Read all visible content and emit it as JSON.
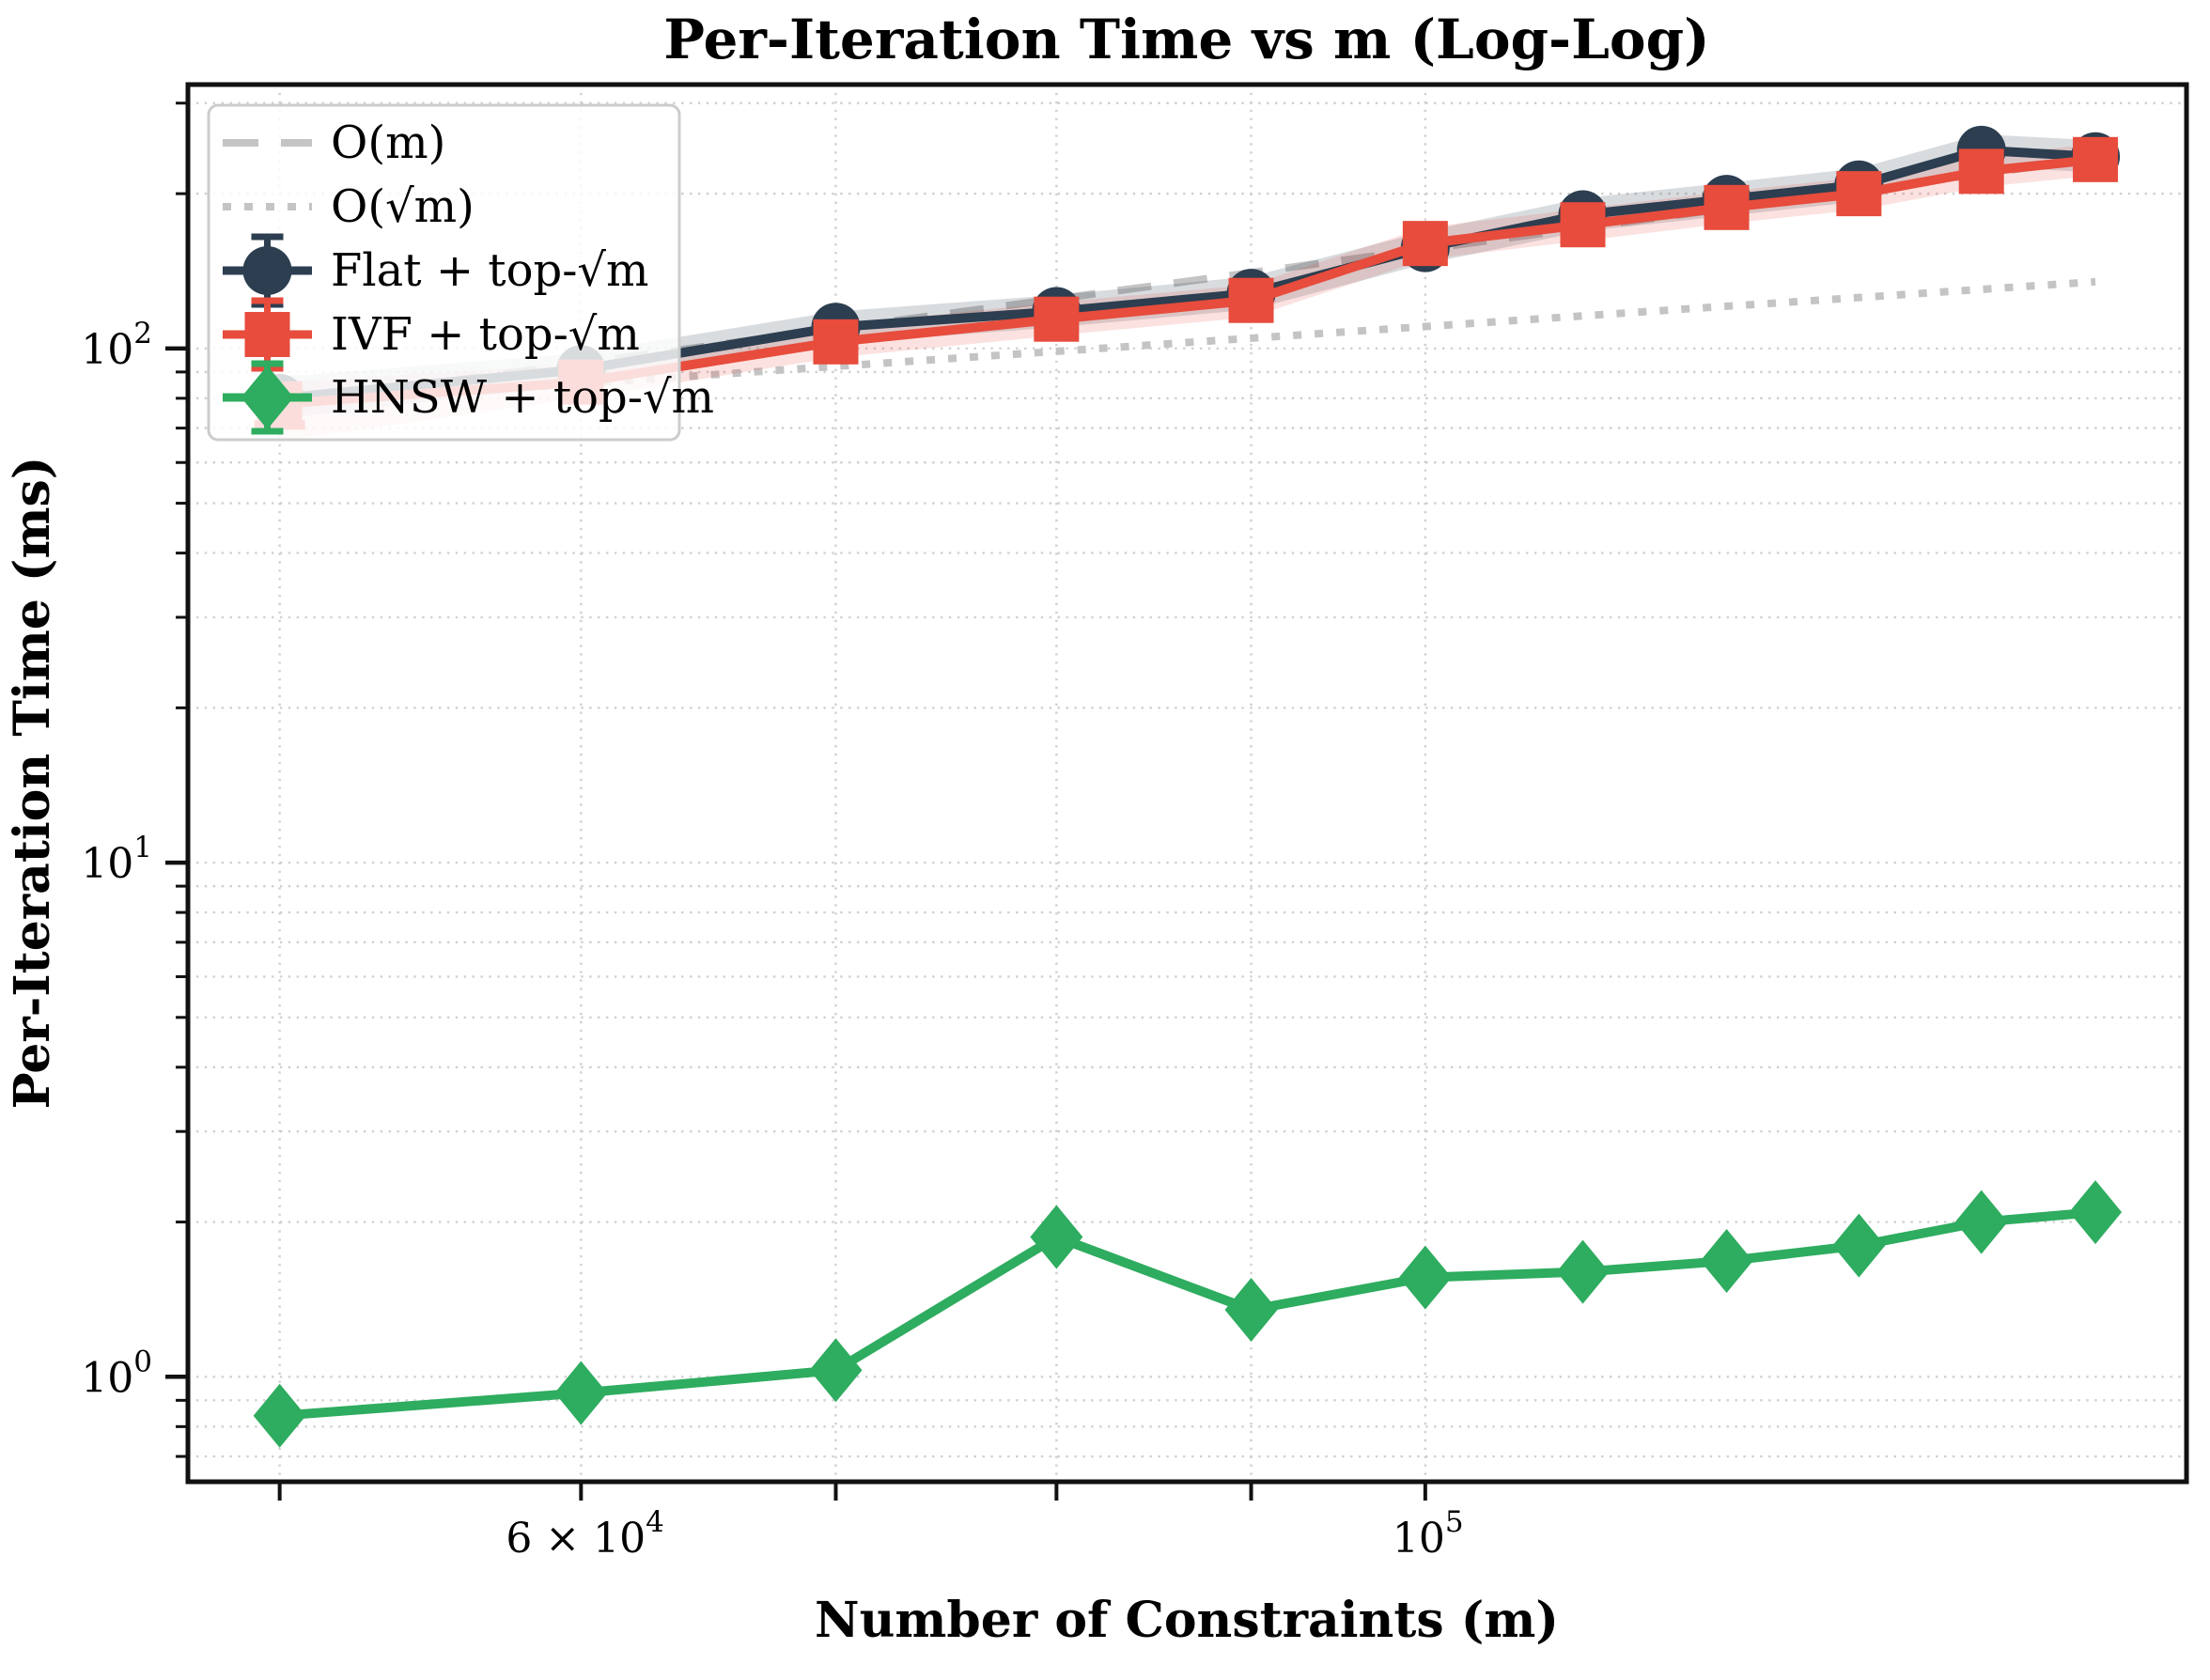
{
  "chart_data": {
    "type": "line",
    "title": "Per-Iteration Time vs m (Log-Log)",
    "xlabel": "Number of Constraints (m)",
    "ylabel": "Per-Iteration Time (ms)",
    "scale": "log-log",
    "xlim": [
      47300,
      158500
    ],
    "ylim": [
      0.625,
      326
    ],
    "grid": "on",
    "legend_position": "upper-left",
    "x": [
      50000,
      60000,
      70000,
      80000,
      90000,
      100000,
      110000,
      120000,
      130000,
      140000,
      150000
    ],
    "series": [
      {
        "name": "Flat + top-√m",
        "color": "#2c3e50",
        "marker": "circle",
        "values": [
          80,
          91,
          110,
          118,
          128,
          157,
          182,
          195,
          208,
          243,
          236
        ],
        "band_low": [
          73,
          85,
          102,
          110,
          119,
          146,
          169,
          181,
          193,
          226,
          220
        ],
        "band_high": [
          88,
          98,
          118,
          127,
          138,
          169,
          196,
          210,
          224,
          261,
          254
        ]
      },
      {
        "name": "IVF + top-√m",
        "color": "#e74c3c",
        "marker": "square",
        "values": [
          78,
          86,
          103,
          114,
          124,
          160,
          174,
          188,
          200,
          221,
          233
        ],
        "band_low": [
          66,
          80,
          96,
          106,
          115,
          149,
          162,
          175,
          186,
          206,
          217
        ],
        "band_high": [
          86,
          93,
          111,
          123,
          133,
          172,
          187,
          202,
          215,
          237,
          250
        ]
      },
      {
        "name": "HNSW + top-√m",
        "color": "#2eac5f",
        "marker": "diamond",
        "values": [
          0.84,
          0.93,
          1.03,
          1.87,
          1.35,
          1.56,
          1.6,
          1.68,
          1.8,
          2.0,
          2.09
        ],
        "band_low": [
          0.8,
          0.89,
          0.99,
          1.8,
          1.3,
          1.51,
          1.55,
          1.63,
          1.74,
          1.94,
          2.02
        ],
        "band_high": [
          0.88,
          0.97,
          1.07,
          1.94,
          1.4,
          1.61,
          1.65,
          1.73,
          1.86,
          2.06,
          2.16
        ]
      }
    ],
    "references": [
      {
        "name": "O(m)",
        "style": "dashed",
        "color": "#c4c4c4",
        "values": [
          78,
          93.6,
          109.2,
          124.8,
          140.4,
          156,
          171.6,
          187.2,
          202.8,
          218.4,
          234
        ]
      },
      {
        "name": "O(√m)",
        "style": "dotted",
        "color": "#c4c4c4",
        "values": [
          78,
          85.4,
          92.3,
          98.7,
          104.7,
          110.3,
          115.7,
          120.8,
          125.6,
          130.3,
          134.8
        ]
      }
    ],
    "error_cap": {
      "series": "IVF + top-√m",
      "x": 50000,
      "value": 71
    },
    "legend": {
      "entries": [
        {
          "label": "O(m)"
        },
        {
          "label": "O(√m)"
        },
        {
          "label": "Flat + top-√m"
        },
        {
          "label": "IVF + top-√m"
        },
        {
          "label": "HNSW + top-√m"
        }
      ]
    },
    "x_ticks": [
      {
        "v": 60000,
        "base": "6 × 10",
        "exp": "4"
      },
      {
        "v": 100000,
        "base": "10",
        "exp": "5"
      }
    ],
    "x_minor_ticks": [
      50000,
      60000,
      70000,
      80000,
      90000,
      100000
    ],
    "y_ticks": [
      {
        "v": 100,
        "base": "10",
        "exp": "2"
      },
      {
        "v": 10,
        "base": "10",
        "exp": "1"
      },
      {
        "v": 1,
        "base": "10",
        "exp": "0"
      }
    ],
    "y_minor_ticks": [
      0.7,
      0.8,
      0.9,
      2,
      3,
      4,
      5,
      6,
      7,
      8,
      9,
      20,
      30,
      40,
      50,
      60,
      70,
      80,
      90,
      200,
      300
    ],
    "grid_x": [
      50000,
      60000,
      70000,
      80000,
      90000,
      100000
    ],
    "grid_y_major": [
      1,
      10,
      100
    ],
    "colors": {
      "spine": "#111111",
      "grid": "#cbcbcb",
      "reference": "#c4c4c4",
      "flat": "#2c3e50",
      "ivf": "#e74c3c",
      "hnsw": "#2eac5f"
    }
  }
}
